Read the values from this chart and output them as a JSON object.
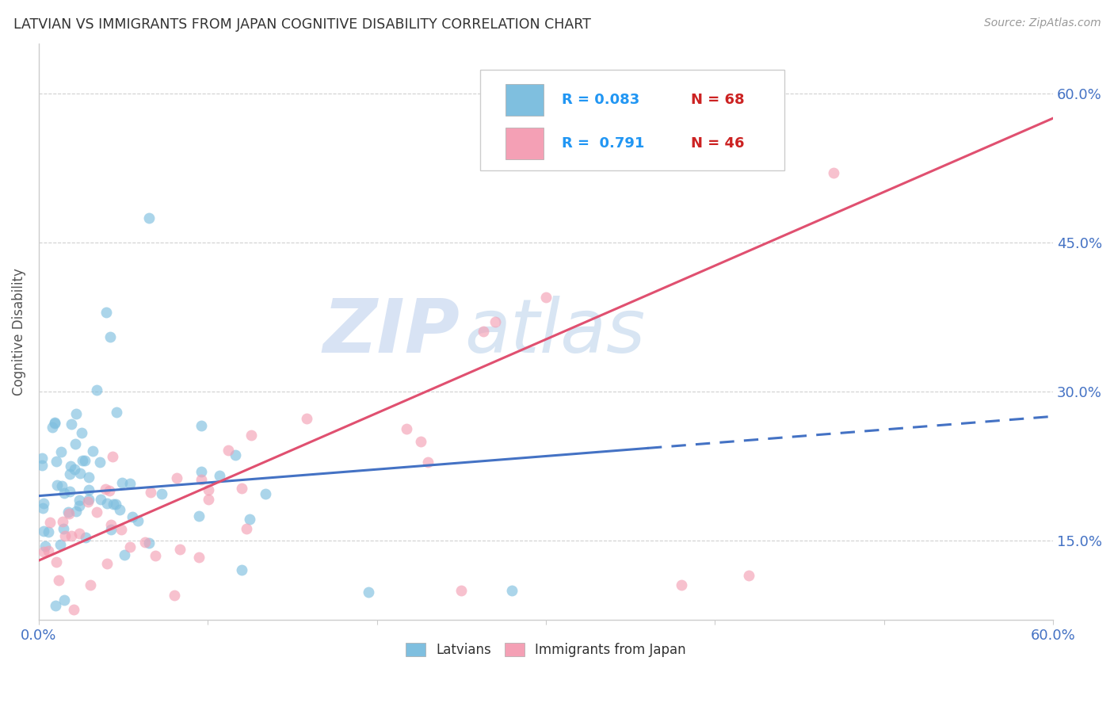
{
  "title": "LATVIAN VS IMMIGRANTS FROM JAPAN COGNITIVE DISABILITY CORRELATION CHART",
  "source": "Source: ZipAtlas.com",
  "ylabel": "Cognitive Disability",
  "y_ticks": [
    0.15,
    0.3,
    0.45,
    0.6
  ],
  "y_tick_labels": [
    "15.0%",
    "30.0%",
    "45.0%",
    "60.0%"
  ],
  "x_range": [
    0.0,
    0.6
  ],
  "y_range": [
    0.07,
    0.65
  ],
  "watermark_zip": "ZIP",
  "watermark_atlas": "atlas",
  "legend_r1": "0.083",
  "legend_n1": "68",
  "legend_r2": "0.791",
  "legend_n2": "46",
  "latvian_color": "#7fbfdf",
  "japan_color": "#f4a0b5",
  "latvian_trend_color": "#4472c4",
  "japan_trend_color": "#e05070",
  "background_color": "#ffffff",
  "title_color": "#333333",
  "axis_label_color": "#4472c4",
  "grid_color": "#d0d0d0",
  "legend_blue_color": "#2196F3",
  "legend_red_color": "#cc0000",
  "lat_trend_start_x": 0.0,
  "lat_trend_start_y": 0.195,
  "lat_trend_end_x": 0.6,
  "lat_trend_end_y": 0.275,
  "jap_trend_start_x": 0.0,
  "jap_trend_start_y": 0.13,
  "jap_trend_end_x": 0.6,
  "jap_trend_end_y": 0.575
}
